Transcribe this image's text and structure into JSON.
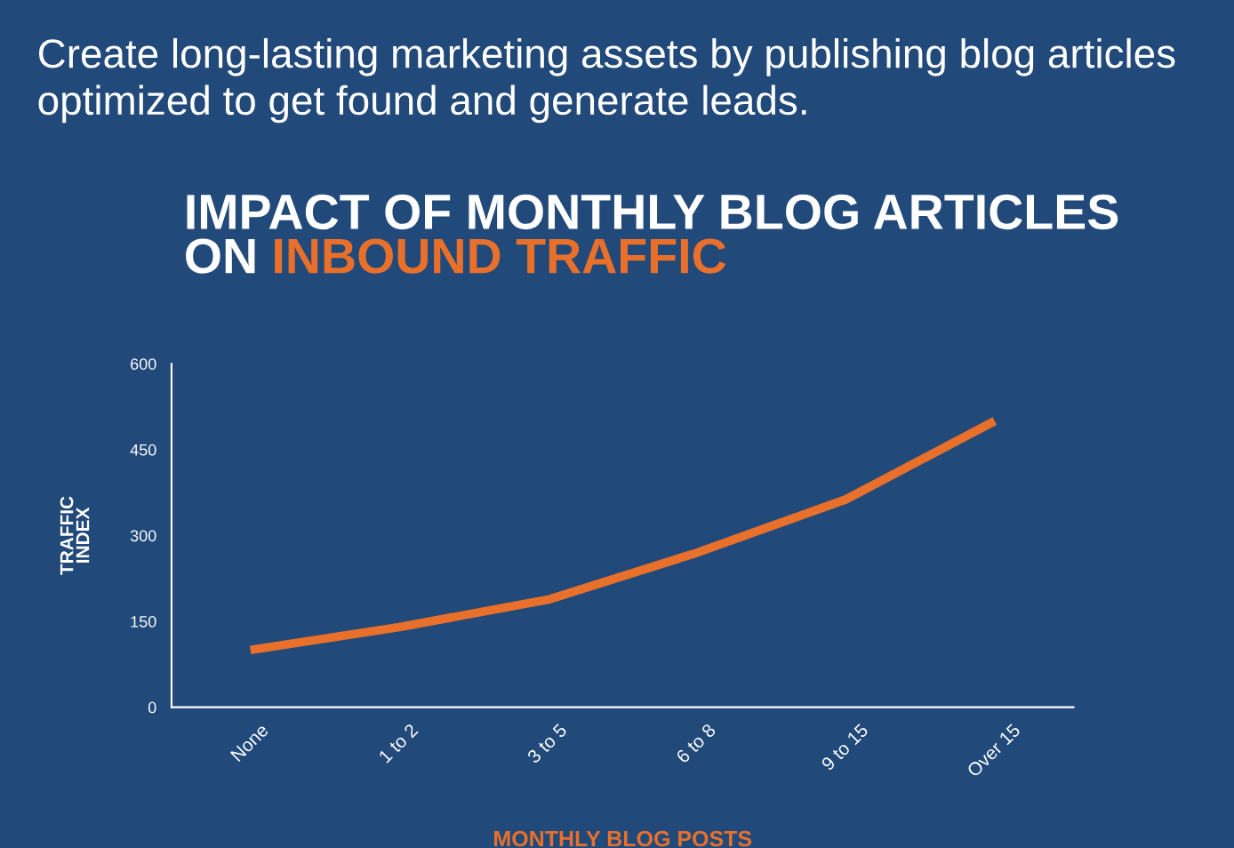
{
  "chart_data": {
    "type": "line",
    "title": "IMPACT OF MONTHLY BLOG ARTICLES ON INBOUND TRAFFIC",
    "annotations": [
      "Create long-lasting marketing assets by publishing blog articles optimized to get found and generate leads."
    ],
    "xlabel": "MONTHLY BLOG POSTS",
    "ylabel": "TRAFFIC\nINDEX",
    "categories": [
      "None",
      "1 to 2",
      "3 to 5",
      "6 to 8",
      "9 to 15",
      "Over 15"
    ],
    "series": [
      {
        "color": "#e8702a",
        "values": [
          100,
          140,
          188,
          270,
          363,
          500
        ]
      }
    ],
    "ylim": [
      0,
      600
    ],
    "yticks": [
      0,
      150,
      300,
      450,
      600
    ],
    "grid": false,
    "legend": false,
    "marker": "none",
    "line_style": "solid"
  }
}
